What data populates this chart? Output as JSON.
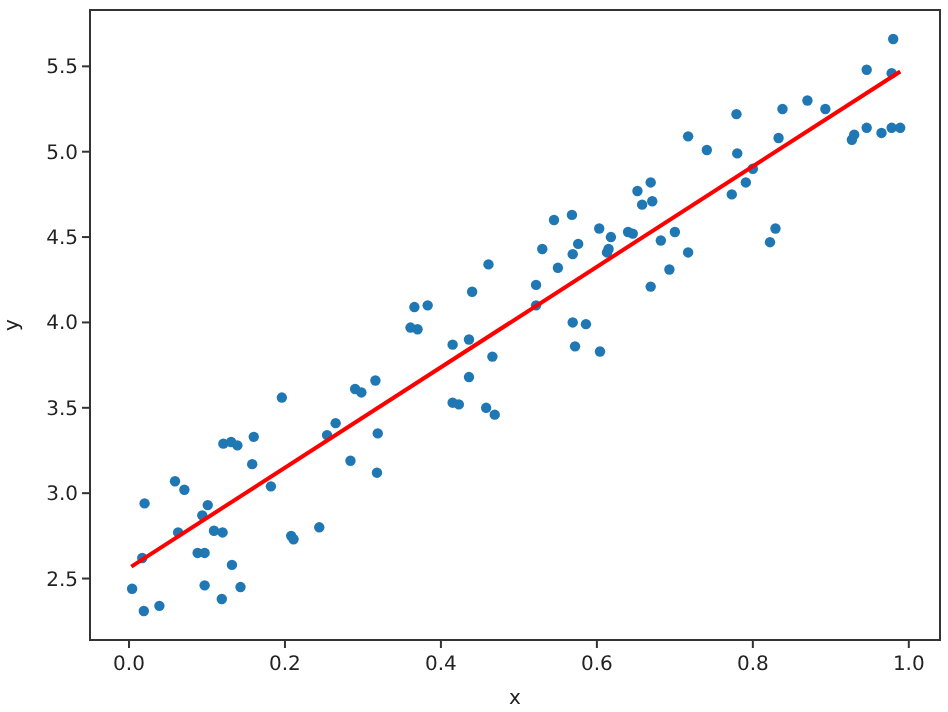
{
  "chart_data": {
    "type": "scatter",
    "xlabel": "x",
    "ylabel": "y",
    "xlim": [
      -0.05,
      1.04
    ],
    "ylim": [
      2.14,
      5.83
    ],
    "xticks": [
      {
        "value": 0,
        "label": "0.0"
      },
      0.2,
      0.4,
      0.6,
      0.8,
      {
        "value": 1,
        "label": "1.0"
      }
    ],
    "yticks": [
      2.5,
      {
        "value": 3,
        "label": "3.0"
      },
      3.5,
      {
        "value": 4,
        "label": "4.0"
      },
      4.5,
      {
        "value": 5,
        "label": "5.0"
      },
      5.5
    ],
    "grid": false,
    "series": [
      {
        "marker": "circle",
        "color": "#1f77b4",
        "x": [
          0.004,
          0.019,
          0.02,
          0.017,
          0.039,
          0.059,
          0.071,
          0.063,
          0.088,
          0.097,
          0.094,
          0.101,
          0.097,
          0.109,
          0.12,
          0.132,
          0.119,
          0.143,
          0.121,
          0.131,
          0.139,
          0.16,
          0.158,
          0.182,
          0.196,
          0.208,
          0.211,
          0.244,
          0.254,
          0.265,
          0.284,
          0.29,
          0.298,
          0.316,
          0.319,
          0.318,
          0.361,
          0.37,
          0.366,
          0.383,
          0.415,
          0.415,
          0.423,
          0.436,
          0.458,
          0.469,
          0.461,
          0.44,
          0.436,
          0.466,
          0.522,
          0.522,
          0.53,
          0.55,
          0.545,
          0.568,
          0.569,
          0.576,
          0.569,
          0.586,
          0.572,
          0.604,
          0.603,
          0.613,
          0.618,
          0.615,
          0.64,
          0.646,
          0.652,
          0.669,
          0.658,
          0.671,
          0.669,
          0.682,
          0.693,
          0.7,
          0.717,
          0.717,
          0.741,
          0.779,
          0.78,
          0.773,
          0.791,
          0.8,
          0.822,
          0.829,
          0.833,
          0.838,
          0.87,
          0.893,
          0.927,
          0.93,
          0.946,
          0.946,
          0.965,
          0.978,
          0.989,
          0.98,
          0.978
        ],
        "values": [
          2.44,
          2.31,
          2.94,
          2.62,
          2.34,
          3.07,
          3.02,
          2.77,
          2.65,
          2.65,
          2.87,
          2.93,
          2.46,
          2.78,
          2.77,
          2.58,
          2.38,
          2.45,
          3.29,
          3.3,
          3.28,
          3.33,
          3.17,
          3.04,
          3.56,
          2.75,
          2.73,
          2.8,
          3.34,
          3.41,
          3.19,
          3.61,
          3.59,
          3.66,
          3.35,
          3.12,
          3.97,
          3.96,
          4.09,
          4.1,
          3.87,
          3.53,
          3.52,
          3.68,
          3.5,
          3.46,
          4.34,
          4.18,
          3.9,
          3.8,
          4.22,
          4.1,
          4.43,
          4.32,
          4.6,
          4.63,
          4.4,
          4.46,
          4.0,
          3.99,
          3.86,
          3.83,
          4.55,
          4.41,
          4.5,
          4.43,
          4.53,
          4.52,
          4.77,
          4.82,
          4.69,
          4.71,
          4.21,
          4.48,
          4.31,
          4.53,
          4.41,
          5.09,
          5.01,
          5.22,
          4.99,
          4.75,
          4.82,
          4.9,
          4.47,
          4.55,
          5.08,
          5.25,
          5.3,
          5.25,
          5.07,
          5.1,
          5.14,
          5.48,
          5.11,
          5.14,
          5.14,
          5.66,
          5.46
        ]
      },
      {
        "type": "line",
        "color": "#ff0000",
        "x": [
          0.003,
          0.989
        ],
        "values": [
          2.57,
          5.47
        ]
      }
    ]
  }
}
